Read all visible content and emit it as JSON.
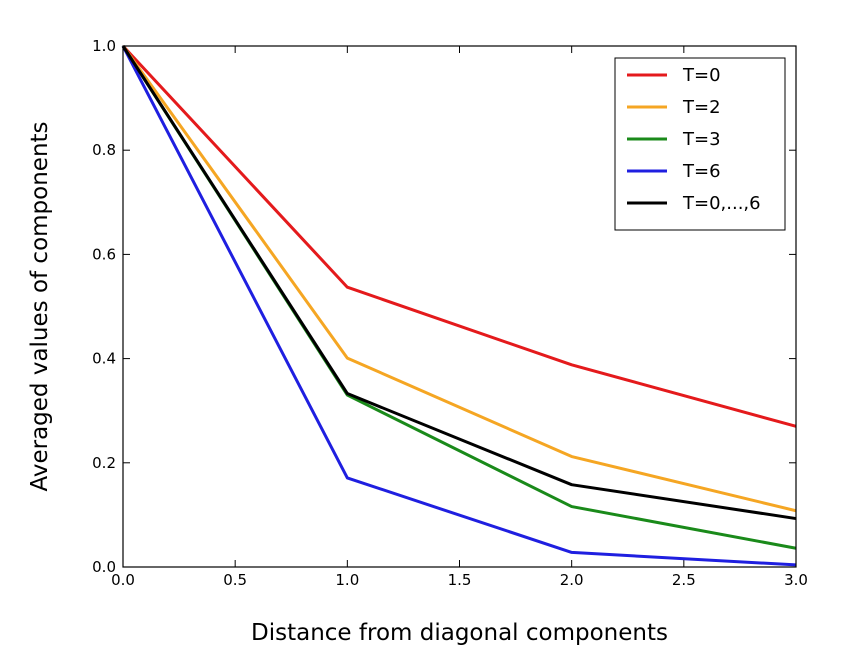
{
  "chart_data": {
    "type": "line",
    "xlabel": "Distance from diagonal components",
    "ylabel": "Averaged values of components",
    "xlim": [
      0.0,
      3.0
    ],
    "ylim": [
      0.0,
      1.0
    ],
    "xticks": [
      "0.0",
      "0.5",
      "1.0",
      "1.5",
      "2.0",
      "2.5",
      "3.0"
    ],
    "yticks": [
      "0.0",
      "0.2",
      "0.4",
      "0.6",
      "0.8",
      "1.0"
    ],
    "grid": false,
    "legend_position": "top-right",
    "x": [
      0,
      1,
      2,
      3
    ],
    "series": [
      {
        "name": "T=0",
        "color": "#e41a1c",
        "values": [
          1.0,
          0.537,
          0.388,
          0.27
        ]
      },
      {
        "name": "T=2",
        "color": "#f5a623",
        "values": [
          1.0,
          0.401,
          0.212,
          0.108
        ]
      },
      {
        "name": "T=3",
        "color": "#1a8a1a",
        "values": [
          1.0,
          0.33,
          0.116,
          0.036
        ]
      },
      {
        "name": "T=6",
        "color": "#1f1fe0",
        "values": [
          1.0,
          0.171,
          0.028,
          0.004
        ]
      },
      {
        "name": "T=0,...,6",
        "color": "#000000",
        "values": [
          1.0,
          0.333,
          0.158,
          0.093
        ]
      }
    ]
  }
}
